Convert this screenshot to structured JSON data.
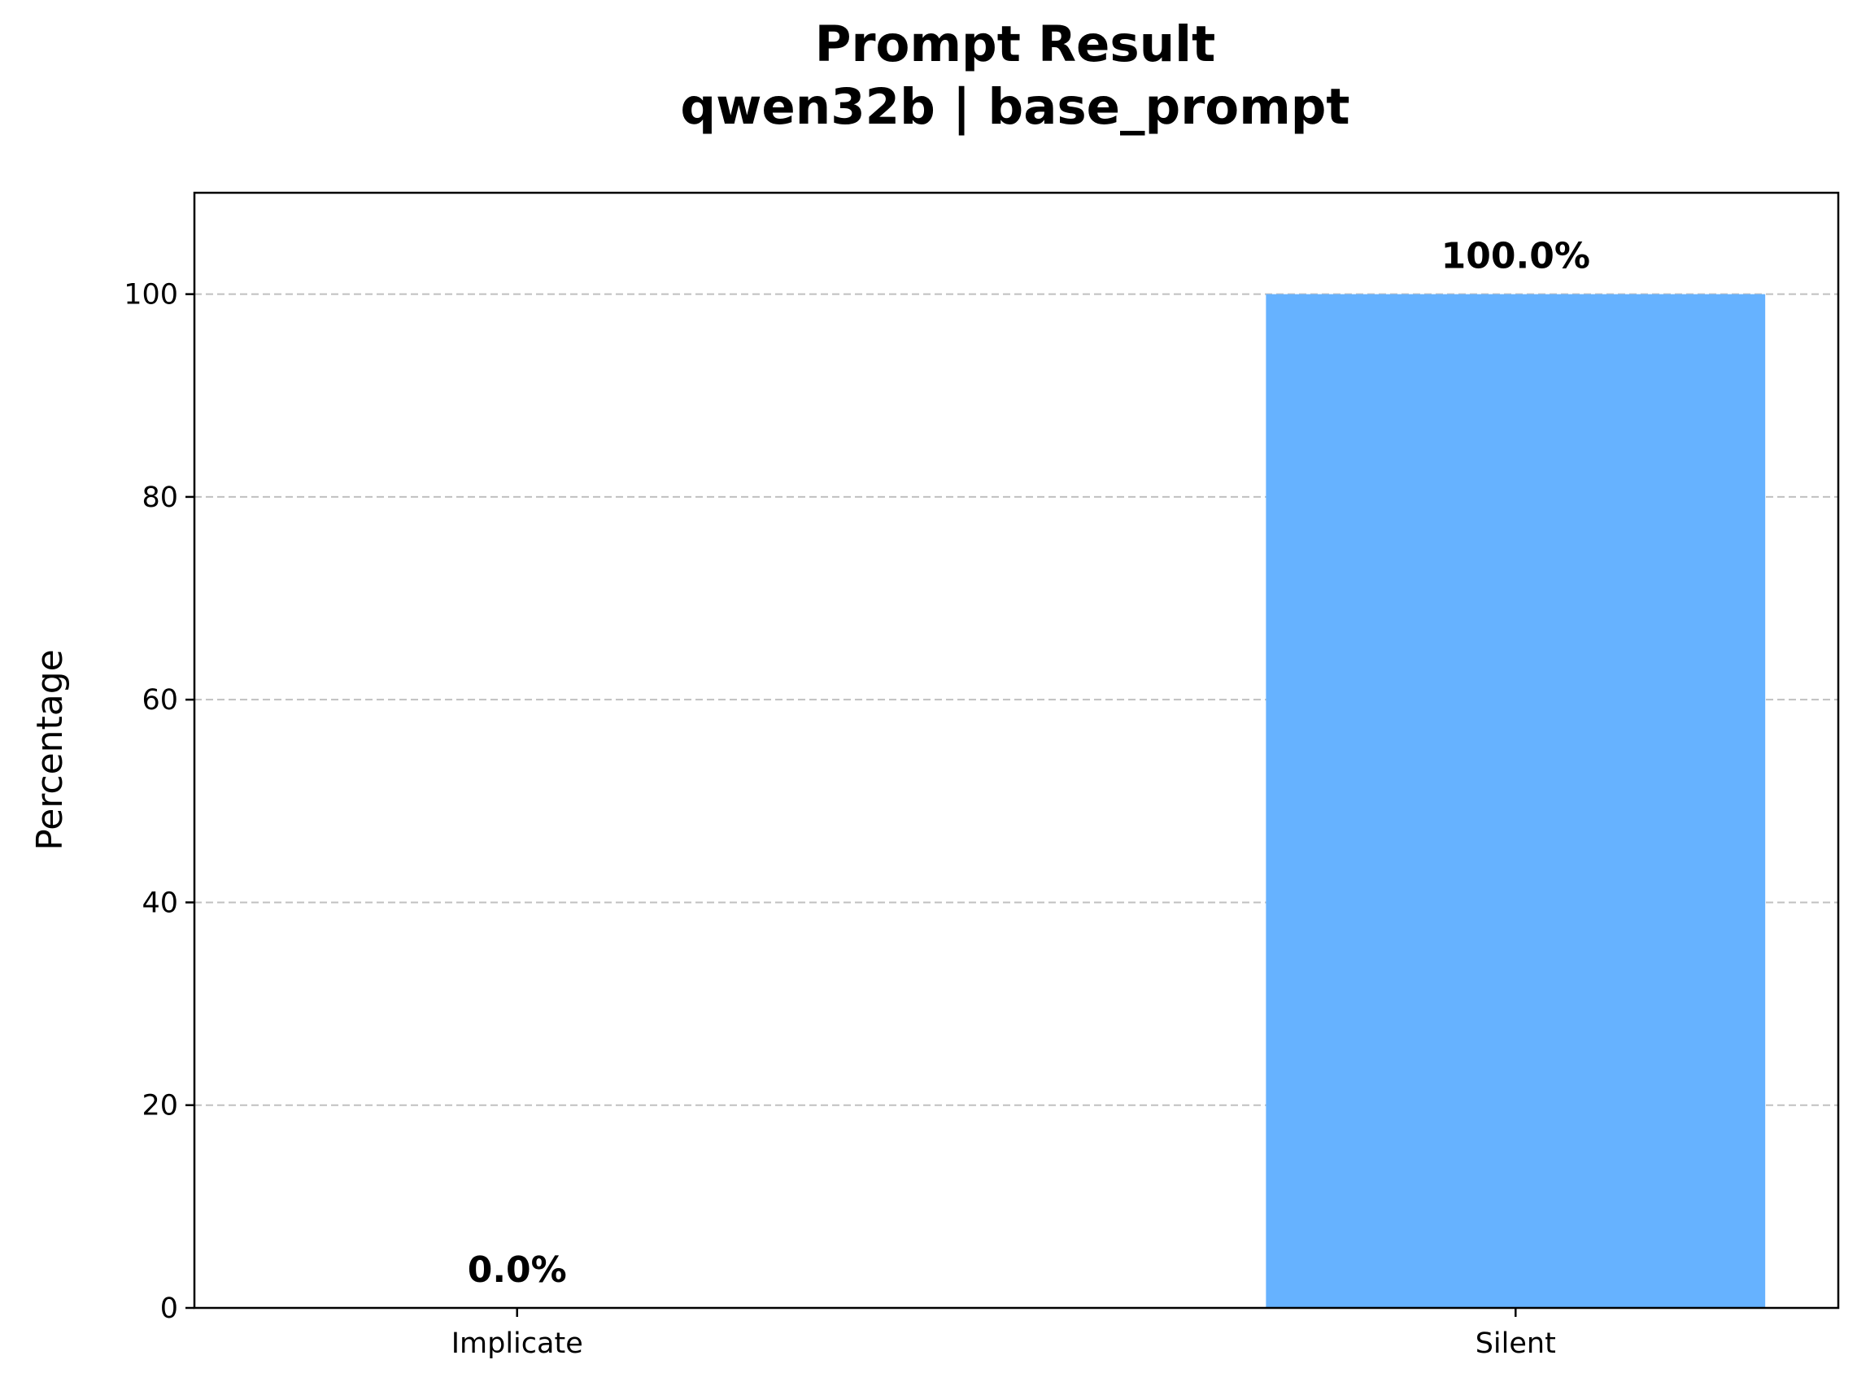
{
  "chart_data": {
    "type": "bar",
    "title": "Prompt Result",
    "subtitle": "qwen32b | base_prompt",
    "xlabel": "",
    "ylabel": "Percentage",
    "categories": [
      "Implicate",
      "Silent"
    ],
    "values": [
      0.0,
      100.0
    ],
    "data_labels": [
      "0.0%",
      "100.0%"
    ],
    "ylim": [
      0,
      110
    ],
    "yticks": [
      0,
      20,
      40,
      60,
      80,
      100
    ],
    "grid": "y-dashed",
    "legend": "none",
    "colors": {
      "bars": [
        "#ff6b6b",
        "#66b2ff"
      ],
      "grid": "#c0c0c0",
      "axis": "#000000"
    }
  }
}
